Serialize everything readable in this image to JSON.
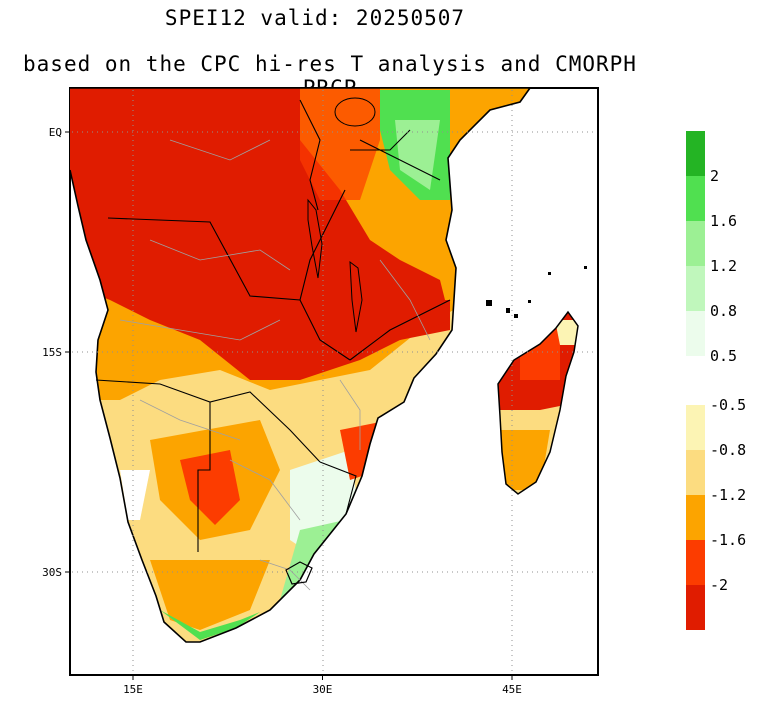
{
  "title": "SPEI12   valid: 20250507",
  "subtitle": "based on the CPC hi-res T analysis and CMORPH PRCP",
  "axes": {
    "x_ticks": [
      {
        "label": "15E",
        "lon": 15
      },
      {
        "label": "30E",
        "lon": 30
      },
      {
        "label": "45E",
        "lon": 45
      }
    ],
    "y_ticks": [
      {
        "label": "EQ",
        "lat": 0
      },
      {
        "label": "15S",
        "lat": -15
      },
      {
        "label": "30S",
        "lat": -30
      }
    ]
  },
  "colorbar": {
    "wet": {
      "colors": [
        "#ecfcec",
        "#c0f7bc",
        "#9cf094",
        "#50e050",
        "#24b424"
      ],
      "labels": [
        "0.5",
        "0.8",
        "1.2",
        "1.6",
        "2"
      ]
    },
    "dry": {
      "colors": [
        "#fcf4b4",
        "#fcdc80",
        "#fca400",
        "#fc3c00",
        "#e01c00"
      ],
      "labels": [
        "-0.5",
        "-0.8",
        "-1.2",
        "-1.6",
        "-2"
      ]
    }
  },
  "colors": {
    "severe_dry": "#e01c00",
    "extreme_dry": "#fc3c00",
    "moderate_dry": "#fca400",
    "mild_dry": "#fcdc80",
    "slight_dry": "#fcf4b4",
    "slight_wet": "#c0f7bc",
    "moderate_wet": "#50e050",
    "border": "#000000",
    "admin_border": "#a0a0a0"
  }
}
